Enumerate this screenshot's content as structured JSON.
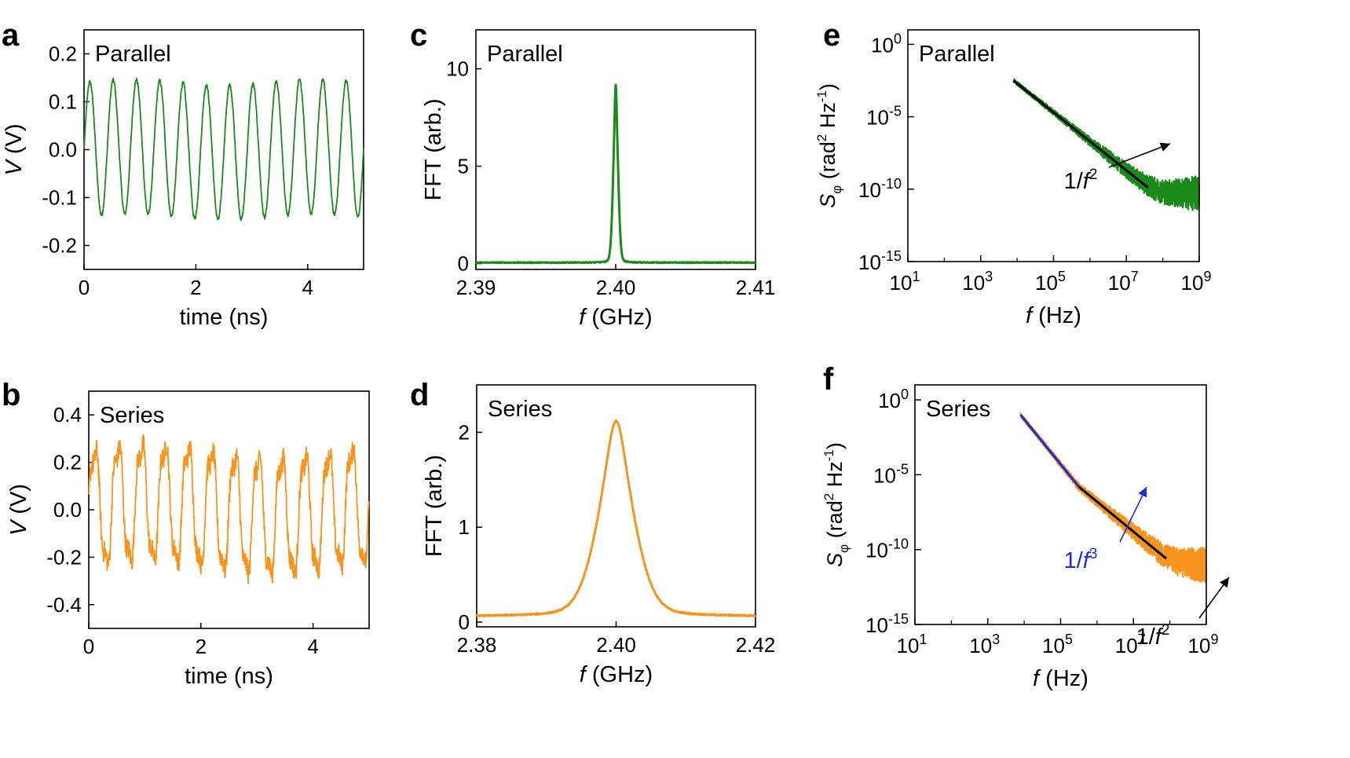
{
  "colors": {
    "parallel": "#1a8a1a",
    "series": "#f7941d",
    "fit": "#000000",
    "f3": "#1f2bd6"
  },
  "chart_data": [
    {
      "panel": "a",
      "type": "line",
      "annotation": "Parallel",
      "xlabel": "time (ns)",
      "ylabel_italic": "V",
      "ylabel_unit": " (V)",
      "xlim": [
        0,
        5
      ],
      "ylim": [
        -0.25,
        0.25
      ],
      "xticks": [
        0,
        2,
        4
      ],
      "xtick_labels": [
        "0",
        "2",
        "4"
      ],
      "yticks": [
        0.2,
        0.1,
        0.0,
        -0.1,
        -0.2
      ],
      "ytick_labels": [
        "0.2",
        "0.1",
        "0.0",
        "-0.1",
        "-0.2"
      ],
      "series": [
        {
          "color": "parallel",
          "freq_ghz": 2.4,
          "amplitude": 0.14
        }
      ]
    },
    {
      "panel": "b",
      "type": "line",
      "annotation": "Series",
      "xlabel": "time (ns)",
      "ylabel_italic": "V",
      "ylabel_unit": " (V)",
      "xlim": [
        0,
        5
      ],
      "ylim": [
        -0.5,
        0.5
      ],
      "xticks": [
        0,
        2,
        4
      ],
      "xtick_labels": [
        "0",
        "2",
        "4"
      ],
      "yticks": [
        0.4,
        0.2,
        0.0,
        -0.2,
        -0.4
      ],
      "ytick_labels": [
        "0.4",
        "0.2",
        "0.0",
        "-0.2",
        "-0.4"
      ],
      "series": [
        {
          "color": "series",
          "freq_ghz": 2.4,
          "amplitude": 0.25
        }
      ]
    },
    {
      "panel": "c",
      "type": "line",
      "annotation": "Parallel",
      "xlabel_italic": "f",
      "xlabel_unit": " (GHz)",
      "ylabel": "FFT (arb.)",
      "xlim": [
        2.39,
        2.41
      ],
      "ylim": [
        -0.3,
        12
      ],
      "xticks": [
        2.39,
        2.4,
        2.41
      ],
      "xtick_labels": [
        "2.39",
        "2.40",
        "2.41"
      ],
      "yticks": [
        0,
        5,
        10
      ],
      "ytick_labels": [
        "0",
        "5",
        "10"
      ],
      "series": [
        {
          "color": "parallel",
          "center": 2.4,
          "peak": 9.2,
          "width": 0.00018,
          "baseline": 0.05
        }
      ]
    },
    {
      "panel": "d",
      "type": "line",
      "annotation": "Series",
      "xlabel_italic": "f",
      "xlabel_unit": " (GHz)",
      "ylabel": "FFT (arb.)",
      "xlim": [
        2.38,
        2.42
      ],
      "ylim": [
        -0.05,
        2.5
      ],
      "xticks": [
        2.38,
        2.4,
        2.42
      ],
      "xtick_labels": [
        "2.38",
        "2.40",
        "2.42"
      ],
      "yticks": [
        0,
        1,
        2
      ],
      "ytick_labels": [
        "0",
        "1",
        "2"
      ],
      "series": [
        {
          "color": "series",
          "center": 2.4,
          "peak": 2.12,
          "width": 0.0022,
          "baseline": 0.06
        }
      ]
    },
    {
      "panel": "e",
      "type": "line",
      "annotation": "Parallel",
      "xlabel_italic": "f",
      "xlabel_unit": " (Hz)",
      "ylabel_italic": "S",
      "ylabel_sub": "φ",
      "ylabel_rest": " (rad",
      "ylabel_sup1": "2",
      "ylabel_mid": " Hz",
      "ylabel_sup2": "-1",
      "ylabel_end": ")",
      "xscale": "log",
      "yscale": "log",
      "xlim_exp": [
        1,
        9
      ],
      "ylim_exp": [
        -15,
        1
      ],
      "xtick_exps": [
        1,
        3,
        5,
        7,
        9
      ],
      "xtick_base": "10",
      "xtick_sups": [
        "1",
        "3",
        "5",
        "7",
        "9"
      ],
      "ytick_exps": [
        0,
        -5,
        -10,
        -15
      ],
      "ytick_base": "10",
      "ytick_sups": [
        "0",
        "-5",
        "-10",
        "-15"
      ],
      "series": [
        {
          "color": "parallel",
          "x_exp_start": 3.9,
          "x_exp_end": 9,
          "y_exp_start": -2.5,
          "slope": -2,
          "flat_exp": -10.3
        }
      ],
      "fits": [
        {
          "label": "1/f",
          "label_sup": "2",
          "color": "fit",
          "x_exp": [
            3.9,
            7.6
          ],
          "y_exp": [
            -2.5,
            -9.9
          ]
        }
      ]
    },
    {
      "panel": "f",
      "type": "line",
      "annotation": "Series",
      "xlabel_italic": "f",
      "xlabel_unit": " (Hz)",
      "ylabel_italic": "S",
      "ylabel_sub": "φ",
      "ylabel_rest": " (rad",
      "ylabel_sup1": "2",
      "ylabel_mid": " Hz",
      "ylabel_sup2": "-1",
      "ylabel_end": ")",
      "xscale": "log",
      "yscale": "log",
      "xlim_exp": [
        1,
        9
      ],
      "ylim_exp": [
        -15,
        1
      ],
      "xtick_exps": [
        1,
        3,
        5,
        7,
        9
      ],
      "xtick_base": "10",
      "xtick_sups": [
        "1",
        "3",
        "5",
        "7",
        "9"
      ],
      "ytick_exps": [
        0,
        -5,
        -10,
        -15
      ],
      "ytick_base": "10",
      "ytick_sups": [
        "0",
        "-5",
        "-10",
        "-15"
      ],
      "series": [
        {
          "color": "series",
          "x_exp_start": 3.9,
          "x_exp_knee": 5.5,
          "x_exp_end": 9,
          "y_exp_start": -1.0,
          "slope1": -3,
          "slope2": -2,
          "flat_exp": -11.0
        }
      ],
      "fits": [
        {
          "label": "1/f",
          "label_sup": "3",
          "color": "f3",
          "x_exp": [
            3.9,
            5.5
          ],
          "y_exp": [
            -1.0,
            -5.8
          ]
        },
        {
          "label": "1/f",
          "label_sup": "2",
          "color": "fit",
          "x_exp": [
            5.5,
            7.9
          ],
          "y_exp": [
            -5.8,
            -10.6
          ]
        }
      ]
    }
  ]
}
